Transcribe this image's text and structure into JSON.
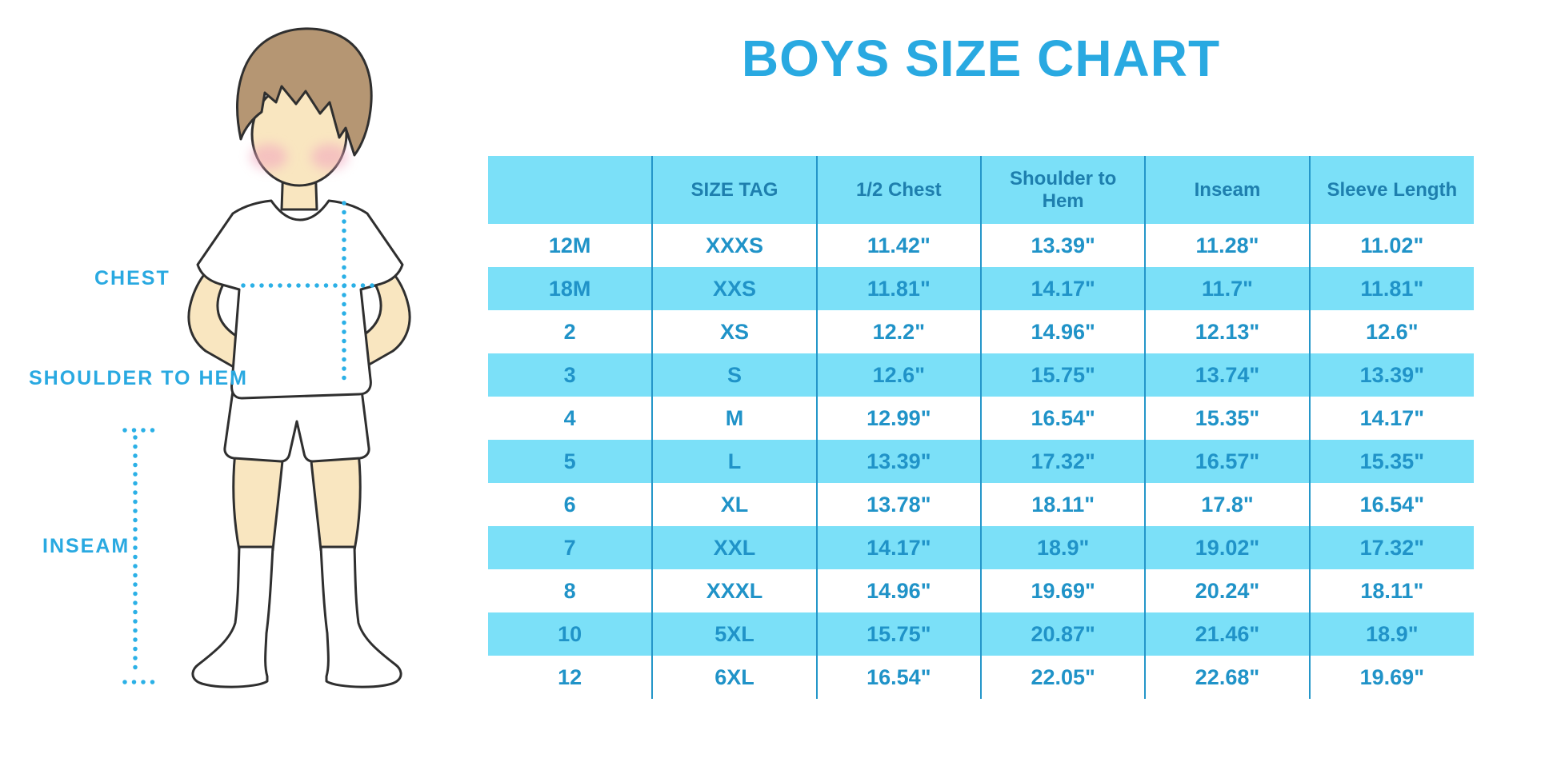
{
  "title": "BOYS SIZE CHART",
  "labels": {
    "chest": "CHEST",
    "shoulder_to_hem": "SHOULDER TO HEM",
    "inseam": "INSEAM"
  },
  "colors": {
    "accent_blue": "#29A9E1",
    "dotted_line": "#2BB0E6",
    "stripe_cyan": "#7BE0F8",
    "divider_blue": "#2496C9",
    "header_text": "#1E7FAE",
    "cell_text": "#2093C8",
    "skin_tone": "#F9E6C0",
    "hair_brown": "#B59673",
    "blush_pink": "#F2A9BF"
  },
  "chart_data": {
    "type": "table",
    "title": "BOYS SIZE CHART",
    "columns": [
      "",
      "SIZE TAG",
      "1/2 Chest",
      "Shoulder to Hem",
      "Inseam",
      "Sleeve Length"
    ],
    "rows": [
      [
        "12M",
        "XXXS",
        "11.42\"",
        "13.39\"",
        "11.28\"",
        "11.02\""
      ],
      [
        "18M",
        "XXS",
        "11.81\"",
        "14.17\"",
        "11.7\"",
        "11.81\""
      ],
      [
        "2",
        "XS",
        "12.2\"",
        "14.96\"",
        "12.13\"",
        "12.6\""
      ],
      [
        "3",
        "S",
        "12.6\"",
        "15.75\"",
        "13.74\"",
        "13.39\""
      ],
      [
        "4",
        "M",
        "12.99\"",
        "16.54\"",
        "15.35\"",
        "14.17\""
      ],
      [
        "5",
        "L",
        "13.39\"",
        "17.32\"",
        "16.57\"",
        "15.35\""
      ],
      [
        "6",
        "XL",
        "13.78\"",
        "18.11\"",
        "17.8\"",
        "16.54\""
      ],
      [
        "7",
        "XXL",
        "14.17\"",
        "18.9\"",
        "19.02\"",
        "17.32\""
      ],
      [
        "8",
        "XXXL",
        "14.96\"",
        "19.69\"",
        "20.24\"",
        "18.11\""
      ],
      [
        "10",
        "5XL",
        "15.75\"",
        "20.87\"",
        "21.46\"",
        "18.9\""
      ],
      [
        "12",
        "6XL",
        "16.54\"",
        "22.05\"",
        "22.68\"",
        "19.69\""
      ]
    ]
  }
}
